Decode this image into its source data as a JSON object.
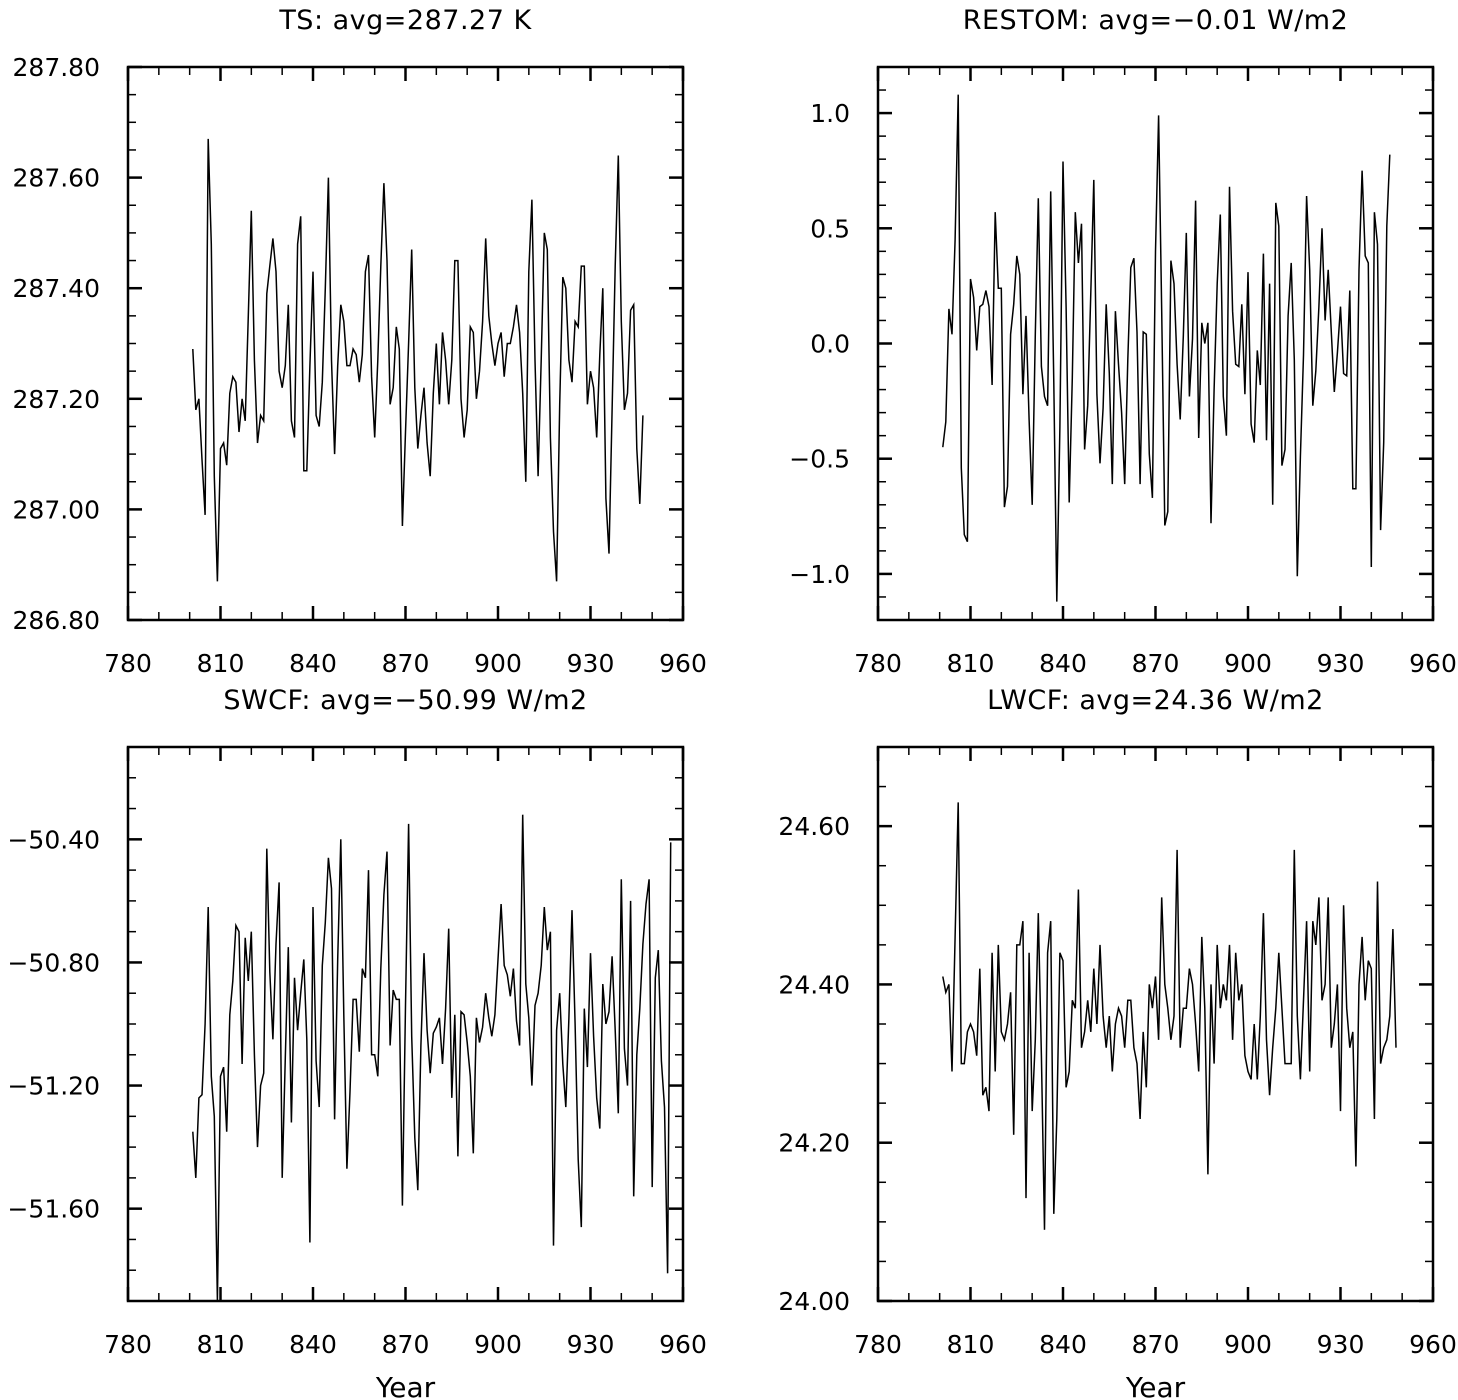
{
  "chart_data": [
    {
      "type": "line",
      "title": "TS: avg=287.27 K",
      "xlabel": "",
      "xlim": [
        780,
        960
      ],
      "xticks": [
        780,
        810,
        840,
        870,
        900,
        930,
        960
      ],
      "xtick_labels": [
        "780",
        "810",
        "840",
        "870",
        "900",
        "930",
        "960"
      ],
      "ylim": [
        286.8,
        287.8
      ],
      "yticks": [
        286.8,
        287.0,
        287.2,
        287.4,
        287.6,
        287.8
      ],
      "ytick_labels": [
        "286.80",
        "287.00",
        "287.20",
        "287.40",
        "287.60",
        "287.80"
      ],
      "yminor": 0.05,
      "x_start": 801,
      "x_step": 1,
      "values": [
        287.29,
        287.18,
        287.2,
        287.09,
        286.99,
        287.67,
        287.48,
        287.06,
        286.87,
        287.11,
        287.12,
        287.08,
        287.21,
        287.24,
        287.23,
        287.14,
        287.2,
        287.16,
        287.35,
        287.54,
        287.27,
        287.12,
        287.17,
        287.16,
        287.39,
        287.44,
        287.49,
        287.43,
        287.25,
        287.22,
        287.26,
        287.37,
        287.16,
        287.13,
        287.48,
        287.53,
        287.07,
        287.07,
        287.26,
        287.43,
        287.17,
        287.15,
        287.23,
        287.4,
        287.6,
        287.27,
        287.1,
        287.26,
        287.37,
        287.34,
        287.26,
        287.26,
        287.29,
        287.28,
        287.23,
        287.28,
        287.43,
        287.46,
        287.24,
        287.13,
        287.27,
        287.44,
        287.59,
        287.45,
        287.19,
        287.22,
        287.33,
        287.29,
        286.97,
        287.14,
        287.3,
        287.47,
        287.22,
        287.11,
        287.17,
        287.22,
        287.12,
        287.06,
        287.21,
        287.3,
        287.19,
        287.32,
        287.27,
        287.19,
        287.27,
        287.45,
        287.45,
        287.2,
        287.13,
        287.18,
        287.33,
        287.32,
        287.2,
        287.25,
        287.34,
        287.49,
        287.35,
        287.3,
        287.26,
        287.3,
        287.32,
        287.24,
        287.3,
        287.3,
        287.33,
        287.37,
        287.32,
        287.21,
        287.05,
        287.43,
        287.56,
        287.27,
        287.06,
        287.27,
        287.5,
        287.47,
        287.13,
        286.96,
        286.87,
        287.19,
        287.42,
        287.4,
        287.27,
        287.23,
        287.34,
        287.33,
        287.44,
        287.44,
        287.19,
        287.25,
        287.22,
        287.13,
        287.28,
        287.4,
        287.02,
        286.92,
        287.18,
        287.44,
        287.64,
        287.34,
        287.18,
        287.21,
        287.36,
        287.37,
        287.11,
        287.01,
        287.17
      ]
    },
    {
      "type": "line",
      "title": "RESTOM: avg=−0.01 W/m2",
      "xlabel": "",
      "xlim": [
        780,
        960
      ],
      "xticks": [
        780,
        810,
        840,
        870,
        900,
        930,
        960
      ],
      "xtick_labels": [
        "780",
        "810",
        "840",
        "870",
        "900",
        "930",
        "960"
      ],
      "ylim": [
        -1.2,
        1.2
      ],
      "yticks": [
        -1.0,
        -0.5,
        0.0,
        0.5,
        1.0
      ],
      "ytick_labels": [
        "−1.0",
        "−0.5",
        "0.0",
        "0.5",
        "1.0"
      ],
      "yminor": 0.1,
      "x_start": 801,
      "x_step": 1,
      "values": [
        -0.45,
        -0.34,
        0.15,
        0.04,
        0.45,
        1.08,
        -0.54,
        -0.83,
        -0.86,
        0.28,
        0.2,
        -0.03,
        0.16,
        0.17,
        0.23,
        0.16,
        -0.18,
        0.57,
        0.24,
        0.24,
        -0.71,
        -0.62,
        0.04,
        0.17,
        0.38,
        0.3,
        -0.22,
        0.12,
        -0.33,
        -0.7,
        0.04,
        0.63,
        -0.1,
        -0.23,
        -0.27,
        0.66,
        -0.17,
        -1.12,
        -0.36,
        0.79,
        0.16,
        -0.69,
        -0.15,
        0.57,
        0.35,
        0.52,
        -0.46,
        -0.27,
        0.22,
        0.71,
        -0.22,
        -0.52,
        -0.28,
        0.17,
        -0.13,
        -0.61,
        0.14,
        -0.09,
        -0.3,
        -0.61,
        -0.07,
        0.33,
        0.37,
        0.05,
        -0.61,
        0.05,
        0.04,
        -0.48,
        -0.67,
        0.4,
        0.99,
        0.14,
        -0.79,
        -0.73,
        0.36,
        0.26,
        -0.09,
        -0.33,
        0.03,
        0.48,
        -0.23,
        0.02,
        0.62,
        -0.41,
        0.09,
        0.0,
        0.09,
        -0.78,
        -0.2,
        0.26,
        0.56,
        -0.23,
        -0.4,
        0.68,
        0.14,
        -0.09,
        -0.1,
        0.17,
        -0.22,
        0.31,
        -0.35,
        -0.43,
        -0.03,
        -0.18,
        0.39,
        -0.42,
        0.26,
        -0.7,
        0.61,
        0.51,
        -0.53,
        -0.46,
        0.12,
        0.35,
        -0.07,
        -1.01,
        -0.49,
        -0.05,
        0.64,
        0.32,
        -0.27,
        -0.12,
        0.16,
        0.5,
        0.1,
        0.32,
        0.05,
        -0.21,
        -0.04,
        0.16,
        -0.13,
        -0.14,
        0.23,
        -0.63,
        -0.63,
        0.32,
        0.75,
        0.38,
        0.35,
        -0.97,
        0.57,
        0.43,
        -0.81,
        -0.43,
        0.51,
        0.82
      ]
    },
    {
      "type": "line",
      "title": "SWCF: avg=−50.99 W/m2",
      "xlabel": "Year",
      "xlim": [
        780,
        960
      ],
      "xticks": [
        780,
        810,
        840,
        870,
        900,
        930,
        960
      ],
      "xtick_labels": [
        "780",
        "810",
        "840",
        "870",
        "900",
        "930",
        "960"
      ],
      "ylim": [
        -51.9,
        -50.1
      ],
      "yticks": [
        -51.6,
        -51.2,
        -50.8,
        -50.4
      ],
      "ytick_labels": [
        "−51.60",
        "−51.20",
        "−50.80",
        "−50.40"
      ],
      "yminor": 0.1,
      "x_start": 801,
      "x_step": 1,
      "values": [
        -51.35,
        -51.5,
        -51.24,
        -51.23,
        -51.0,
        -50.62,
        -51.17,
        -51.3,
        -51.9,
        -51.17,
        -51.14,
        -51.35,
        -50.97,
        -50.86,
        -50.68,
        -50.7,
        -51.13,
        -50.72,
        -50.86,
        -50.7,
        -51.1,
        -51.4,
        -51.2,
        -51.16,
        -50.43,
        -50.83,
        -51.05,
        -50.74,
        -50.54,
        -51.5,
        -51.11,
        -50.75,
        -51.32,
        -50.85,
        -51.02,
        -50.9,
        -50.79,
        -51.05,
        -51.71,
        -50.62,
        -51.12,
        -51.27,
        -50.81,
        -50.67,
        -50.46,
        -50.56,
        -51.31,
        -50.79,
        -50.4,
        -50.97,
        -51.47,
        -51.22,
        -50.92,
        -50.92,
        -51.09,
        -50.82,
        -50.85,
        -50.5,
        -51.1,
        -51.1,
        -51.17,
        -50.82,
        -50.58,
        -50.44,
        -51.07,
        -50.89,
        -50.92,
        -50.92,
        -51.59,
        -50.94,
        -50.35,
        -51.04,
        -51.37,
        -51.54,
        -51.07,
        -50.77,
        -51.02,
        -51.16,
        -51.03,
        -51.01,
        -50.98,
        -51.13,
        -50.95,
        -50.69,
        -51.24,
        -50.97,
        -51.43,
        -50.96,
        -50.97,
        -51.06,
        -51.17,
        -51.42,
        -50.98,
        -51.06,
        -51.01,
        -50.9,
        -50.98,
        -51.04,
        -50.97,
        -50.79,
        -50.61,
        -50.81,
        -50.84,
        -50.91,
        -50.82,
        -50.99,
        -51.07,
        -50.32,
        -50.87,
        -50.98,
        -51.2,
        -50.94,
        -50.9,
        -50.81,
        -50.62,
        -50.76,
        -50.7,
        -51.72,
        -51.02,
        -50.9,
        -51.13,
        -51.27,
        -50.98,
        -50.63,
        -51.0,
        -51.44,
        -51.66,
        -50.95,
        -51.14,
        -50.77,
        -51.04,
        -51.24,
        -51.34,
        -50.87,
        -51.0,
        -50.96,
        -50.78,
        -51.02,
        -51.29,
        -50.53,
        -51.08,
        -51.2,
        -50.6,
        -51.56,
        -51.1,
        -50.95,
        -50.74,
        -50.61,
        -50.53,
        -51.53,
        -50.85,
        -50.76,
        -51.12,
        -51.27,
        -51.81,
        -50.41
      ]
    },
    {
      "type": "line",
      "title": "LWCF: avg=24.36 W/m2",
      "xlabel": "Year",
      "xlim": [
        780,
        960
      ],
      "xticks": [
        780,
        810,
        840,
        870,
        900,
        930,
        960
      ],
      "xtick_labels": [
        "780",
        "810",
        "840",
        "870",
        "900",
        "930",
        "960"
      ],
      "ylim": [
        24.0,
        24.7
      ],
      "yticks": [
        24.0,
        24.2,
        24.4,
        24.6
      ],
      "ytick_labels": [
        "24.00",
        "24.20",
        "24.40",
        "24.60"
      ],
      "yminor": 0.05,
      "x_start": 801,
      "x_step": 1,
      "values": [
        24.41,
        24.39,
        24.4,
        24.29,
        24.46,
        24.63,
        24.3,
        24.3,
        24.34,
        24.35,
        24.34,
        24.31,
        24.42,
        24.26,
        24.27,
        24.24,
        24.44,
        24.29,
        24.45,
        24.34,
        24.33,
        24.35,
        24.39,
        24.21,
        24.45,
        24.45,
        24.48,
        24.13,
        24.44,
        24.24,
        24.33,
        24.49,
        24.31,
        24.09,
        24.44,
        24.48,
        24.11,
        24.23,
        24.44,
        24.43,
        24.27,
        24.29,
        24.38,
        24.37,
        24.52,
        24.32,
        24.34,
        24.38,
        24.34,
        24.42,
        24.35,
        24.45,
        24.36,
        24.32,
        24.36,
        24.29,
        24.35,
        24.37,
        24.36,
        24.32,
        24.38,
        24.38,
        24.32,
        24.3,
        24.23,
        24.34,
        24.27,
        24.4,
        24.37,
        24.41,
        24.33,
        24.51,
        24.4,
        24.37,
        24.33,
        24.36,
        24.57,
        24.32,
        24.37,
        24.37,
        24.42,
        24.4,
        24.35,
        24.29,
        24.46,
        24.37,
        24.16,
        24.4,
        24.3,
        24.45,
        24.37,
        24.4,
        24.38,
        24.45,
        24.33,
        24.44,
        24.38,
        24.4,
        24.31,
        24.29,
        24.28,
        24.35,
        24.28,
        24.36,
        24.49,
        24.33,
        24.26,
        24.32,
        24.37,
        24.44,
        24.37,
        24.3,
        24.3,
        24.3,
        24.57,
        24.36,
        24.28,
        24.38,
        24.48,
        24.29,
        24.48,
        24.45,
        24.51,
        24.38,
        24.4,
        24.51,
        24.32,
        24.35,
        24.4,
        24.24,
        24.5,
        24.37,
        24.32,
        24.34,
        24.17,
        24.4,
        24.46,
        24.38,
        24.43,
        24.42,
        24.23,
        24.53,
        24.3,
        24.32,
        24.33,
        24.36,
        24.47,
        24.32
      ]
    }
  ]
}
